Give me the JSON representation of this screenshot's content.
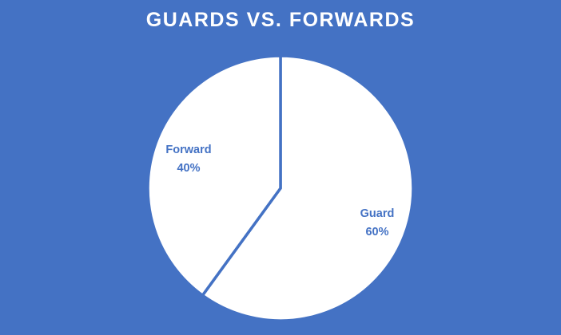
{
  "colors": {
    "background": "#4472C4",
    "slice_fill": "#FFFFFF",
    "slice_border": "#4472C4",
    "label_text": "#4472C4",
    "title_text": "#FFFFFF"
  },
  "chart_data": {
    "type": "pie",
    "title": "GUARDS VS. FORWARDS",
    "categories": [
      "Guard",
      "Forward"
    ],
    "values": [
      60,
      40
    ],
    "value_labels": [
      "60%",
      "40%"
    ],
    "legend": "none",
    "start_angle": "12 o'clock",
    "direction": "clockwise"
  }
}
